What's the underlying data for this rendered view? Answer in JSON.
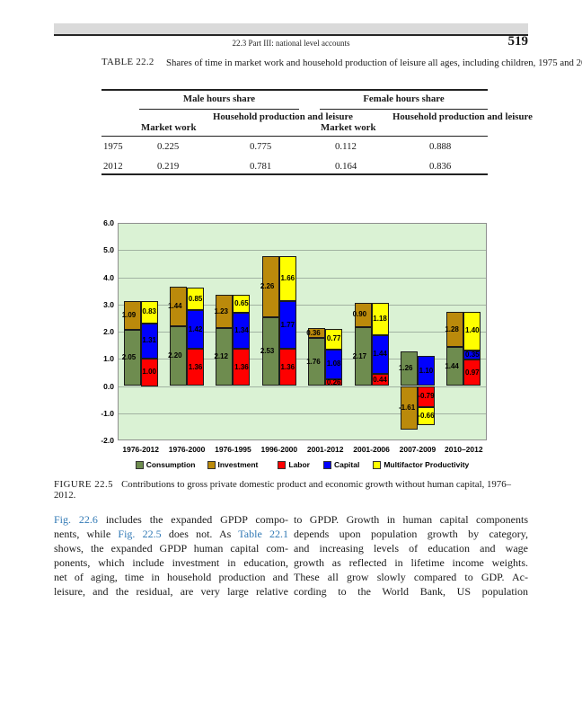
{
  "header": {
    "running_head": "22.3 Part III: national level accounts",
    "page_number": "519"
  },
  "table": {
    "label": "TABLE 22.2",
    "caption": "Shares of time in market work and household production of leisure all ages, including children, 1975 and 2012.",
    "group_headers": {
      "male": "Male hours share",
      "female": "Female hours share"
    },
    "sub_headers": {
      "market_work": "Market work",
      "household": "Household production and leisure"
    },
    "rows": [
      {
        "year": "1975",
        "male_market": "0.225",
        "male_household": "0.775",
        "female_market": "0.112",
        "female_household": "0.888"
      },
      {
        "year": "2012",
        "male_market": "0.219",
        "male_household": "0.781",
        "female_market": "0.164",
        "female_household": "0.836"
      }
    ]
  },
  "figure": {
    "label": "FIGURE 22.5",
    "caption": "Contributions to gross private domestic product and economic growth without human capital, 1976–2012."
  },
  "chart_data": {
    "type": "bar",
    "stacked": true,
    "paired_bars": true,
    "title": "",
    "xlabel": "",
    "ylabel": "",
    "categories": [
      "1976-2012",
      "1976-2000",
      "1976-1995",
      "1996-2000",
      "2001-2012",
      "2001-2006",
      "2007-2009",
      "2010–2012"
    ],
    "ylim": [
      -2,
      6
    ],
    "yticks": [
      6,
      5,
      4,
      3,
      2,
      1,
      0,
      -1,
      -2
    ],
    "ytick_labels": [
      "6.0",
      "5.0",
      "4.0",
      "3.0",
      "2.0",
      "1.0",
      "0.0",
      "-1.0",
      "-2.0"
    ],
    "grid": true,
    "plot_bg": "#DAF2D4",
    "legend_position": "bottom",
    "series": [
      {
        "name": "Consumption",
        "bar": "left",
        "color": "#6E8C4F",
        "values": [
          2.05,
          2.2,
          2.12,
          2.53,
          1.76,
          2.17,
          1.26,
          1.44
        ]
      },
      {
        "name": "Investment",
        "bar": "left",
        "color": "#BB8A0B",
        "values": [
          1.09,
          1.44,
          1.23,
          2.26,
          0.36,
          0.9,
          -1.61,
          1.28
        ]
      },
      {
        "name": "Labor",
        "bar": "right",
        "color": "#FE0000",
        "values": [
          1.0,
          1.36,
          1.36,
          1.36,
          0.26,
          0.44,
          -0.79,
          0.97
        ]
      },
      {
        "name": "Capital",
        "bar": "right",
        "color": "#0000FE",
        "values": [
          1.31,
          1.42,
          1.34,
          1.77,
          1.08,
          1.44,
          1.1,
          0.35
        ]
      },
      {
        "name": "Multifactor Productivity",
        "bar": "right",
        "color": "#FFFF00",
        "values": [
          0.83,
          0.85,
          0.65,
          1.66,
          0.77,
          1.18,
          -0.66,
          1.4
        ]
      }
    ]
  },
  "body": {
    "left_lines": [
      [
        {
          "t": "Fig. 22.6",
          "link": true
        },
        {
          "t": " includes the expanded GPDP compo-"
        }
      ],
      [
        {
          "t": "nents, while "
        },
        {
          "t": "Fig. 22.5",
          "link": true
        },
        {
          "t": " does not. As "
        },
        {
          "t": "Table 22.1",
          "link": true
        }
      ],
      [
        {
          "t": "shows, the expanded GPDP human capital com-"
        }
      ],
      [
        {
          "t": "ponents, which include investment in education,"
        }
      ],
      [
        {
          "t": "net of aging, time in household production and"
        }
      ],
      [
        {
          "t": "leisure, and the residual, are very large relative"
        }
      ]
    ],
    "right_lines": [
      [
        {
          "t": "to GPDP. Growth in human capital components"
        }
      ],
      [
        {
          "t": "depends upon population growth by category,"
        }
      ],
      [
        {
          "t": "and increasing levels of education and wage"
        }
      ],
      [
        {
          "t": "growth as reflected in lifetime income weights."
        }
      ],
      [
        {
          "t": "These all grow slowly compared to GDP. Ac-"
        }
      ],
      [
        {
          "t": "cording to the World Bank, US population"
        }
      ]
    ]
  }
}
